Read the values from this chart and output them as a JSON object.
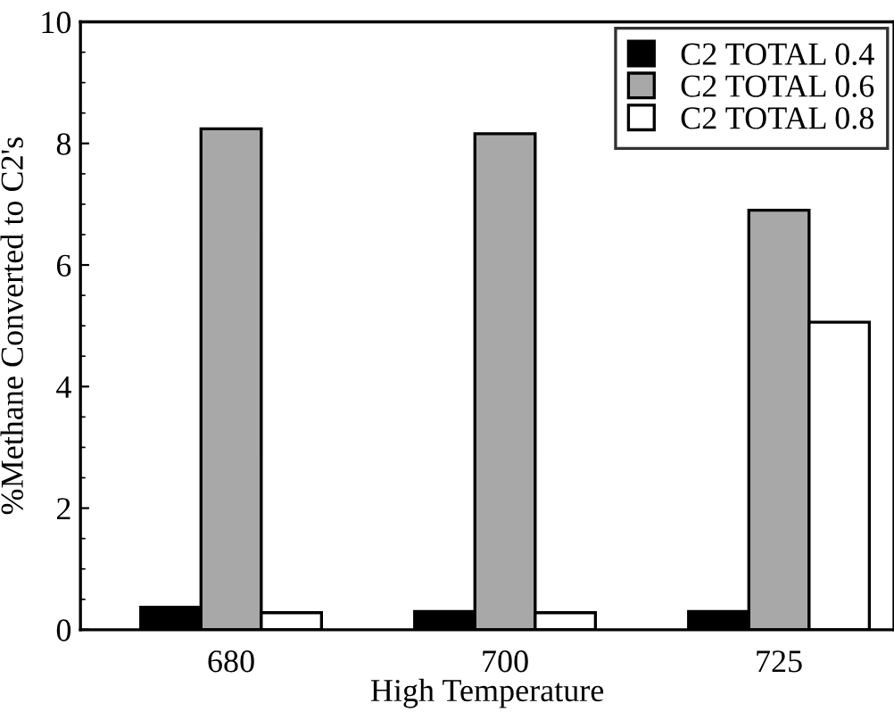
{
  "chart_data": {
    "type": "bar",
    "xlabel": "High Temperature",
    "ylabel": "%Methane Converted to C2's",
    "categories": [
      "680",
      "700",
      "725"
    ],
    "series": [
      {
        "name": "C2 TOTAL 0.4",
        "color": "#000000",
        "values": [
          0.37,
          0.3,
          0.3
        ]
      },
      {
        "name": "C2 TOTAL 0.6",
        "color": "#a8a8a8",
        "values": [
          8.24,
          8.16,
          6.9
        ]
      },
      {
        "name": "C2 TOTAL 0.8",
        "color": "#ffffff",
        "values": [
          0.28,
          0.28,
          5.06
        ]
      }
    ],
    "ylim": [
      0,
      10
    ],
    "yticks": [
      0,
      2,
      4,
      6,
      8,
      10
    ],
    "grid": false,
    "legend": "top right"
  }
}
